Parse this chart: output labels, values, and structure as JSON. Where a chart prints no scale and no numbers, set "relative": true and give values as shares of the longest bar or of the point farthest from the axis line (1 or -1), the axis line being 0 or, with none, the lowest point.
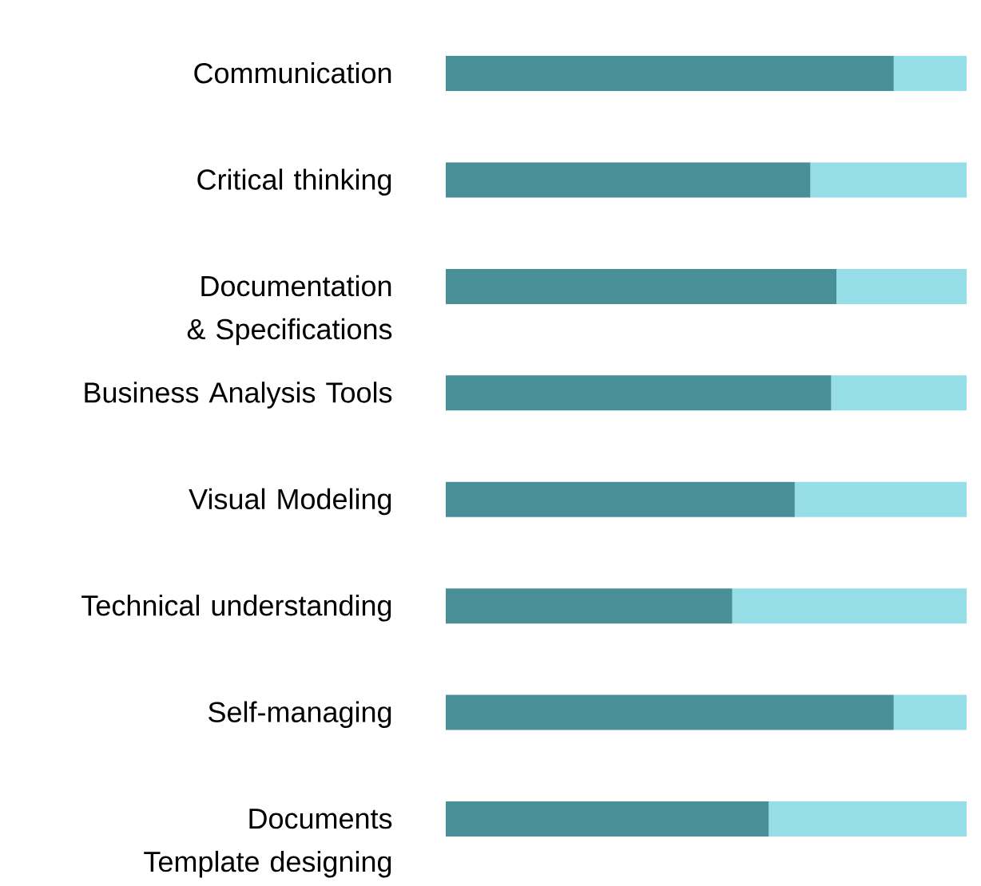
{
  "chart_data": {
    "type": "bar",
    "orientation": "horizontal",
    "stacked": true,
    "relative": true,
    "categories": [
      "Communication",
      "Critical thinking",
      "Documentation & Specifications",
      "Business Analysis Tools",
      "Visual Modeling",
      "Technical understanding",
      "Self-managing",
      "Documents Template designing"
    ],
    "series": [
      {
        "color": "#488f97",
        "values": [
          0.86,
          0.7,
          0.75,
          0.74,
          0.67,
          0.55,
          0.86,
          0.62
        ]
      },
      {
        "color": "#95dee7",
        "values": [
          0.14,
          0.3,
          0.25,
          0.26,
          0.33,
          0.45,
          0.14,
          0.38
        ]
      }
    ]
  }
}
